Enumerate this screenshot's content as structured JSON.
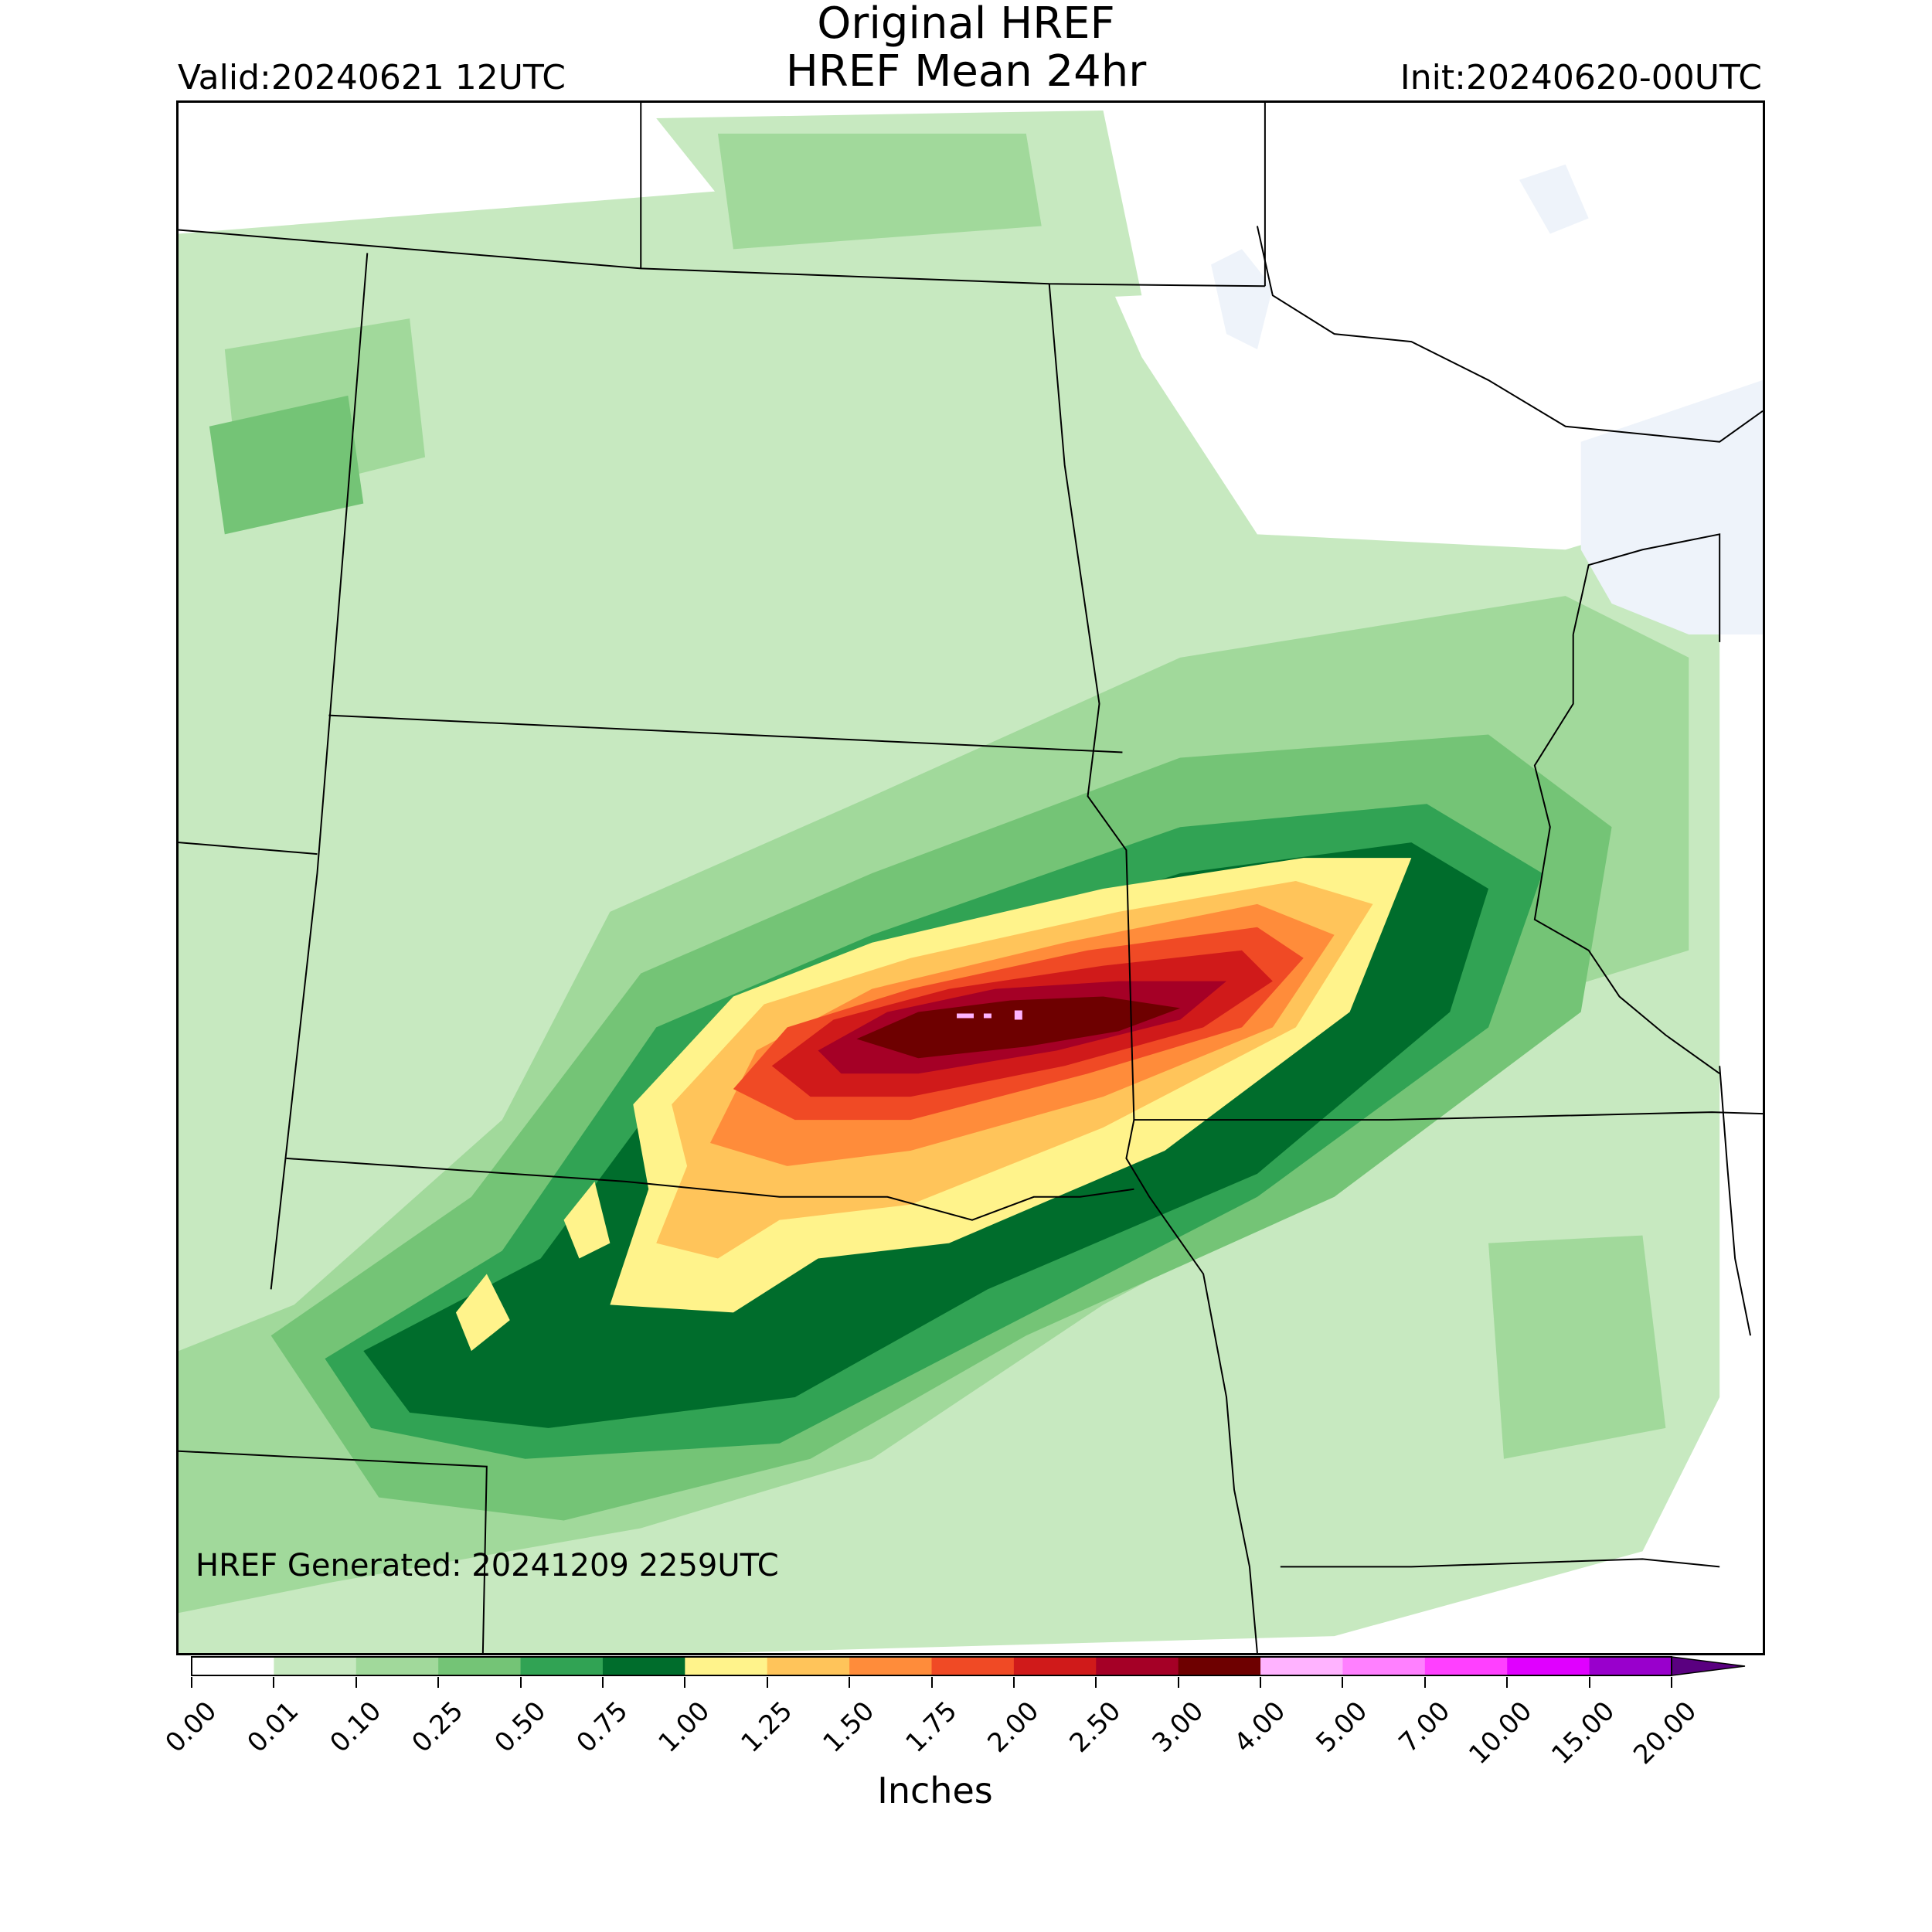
{
  "title_line1": "Original HREF",
  "title_line2": "HREF Mean 24hr",
  "valid_text": "Valid:20240621 12UTC",
  "init_text": "Init:20240620-00UTC",
  "generated_text": "HREF Generated: 20241209 2259UTC",
  "colorbar": {
    "label": "Inches",
    "levels": [
      "0.00",
      "0.01",
      "0.10",
      "0.25",
      "0.50",
      "0.75",
      "1.00",
      "1.25",
      "1.50",
      "1.75",
      "2.00",
      "2.50",
      "3.00",
      "4.00",
      "5.00",
      "7.00",
      "10.00",
      "15.00",
      "20.00"
    ],
    "colors": [
      "#ffffff",
      "#c7e9c0",
      "#a1d99b",
      "#74c476",
      "#31a354",
      "#006d2c",
      "#fff38b",
      "#ffc45a",
      "#ff8c3a",
      "#f04a25",
      "#d01a1a",
      "#a50026",
      "#6e0000",
      "#ffb3ff",
      "#ff80ff",
      "#ff40ff",
      "#e000ff",
      "#9900cc"
    ],
    "extend_color": "#5a0080"
  },
  "colors": {
    "lake": "#eef3fa",
    "border": "#000000"
  }
}
